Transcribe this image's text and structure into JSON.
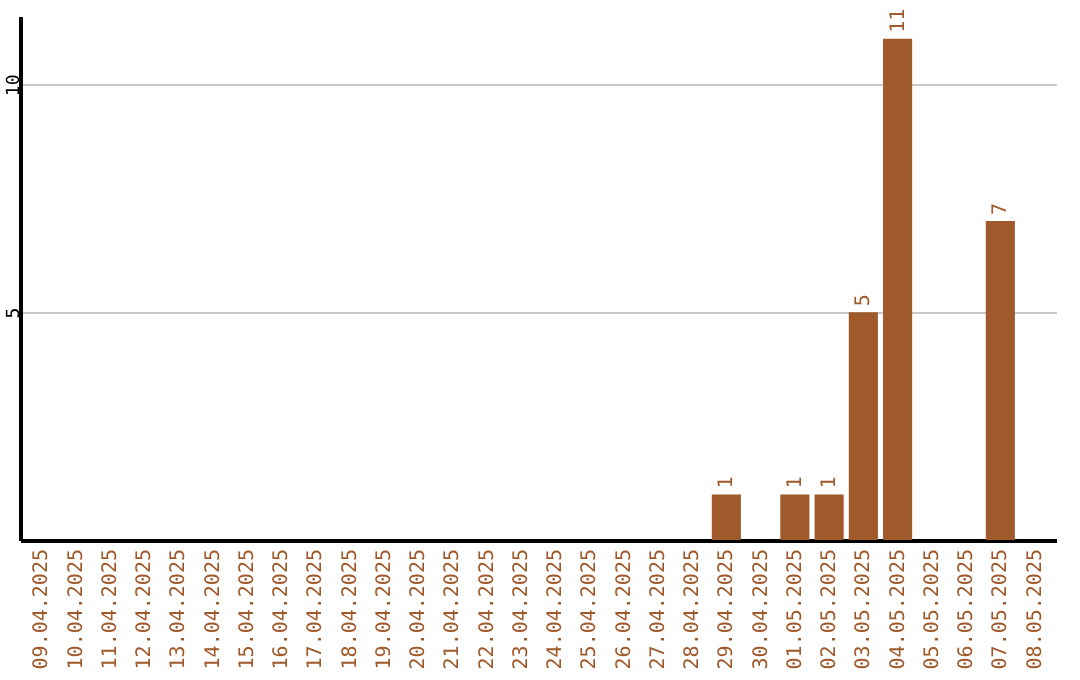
{
  "chart_data": {
    "type": "bar",
    "categories": [
      "09.04.2025",
      "10.04.2025",
      "11.04.2025",
      "12.04.2025",
      "13.04.2025",
      "14.04.2025",
      "15.04.2025",
      "16.04.2025",
      "17.04.2025",
      "18.04.2025",
      "19.04.2025",
      "20.04.2025",
      "21.04.2025",
      "22.04.2025",
      "23.04.2025",
      "24.04.2025",
      "25.04.2025",
      "26.04.2025",
      "27.04.2025",
      "28.04.2025",
      "29.04.2025",
      "30.04.2025",
      "01.05.2025",
      "02.05.2025",
      "03.05.2025",
      "04.05.2025",
      "05.05.2025",
      "06.05.2025",
      "07.05.2025",
      "08.05.2025"
    ],
    "values": [
      null,
      null,
      null,
      null,
      null,
      null,
      null,
      null,
      null,
      null,
      null,
      null,
      null,
      null,
      null,
      null,
      null,
      null,
      null,
      null,
      1,
      null,
      1,
      1,
      5,
      11,
      null,
      null,
      7,
      null
    ],
    "color": "#a0592a",
    "ylim": [
      0,
      11.5
    ],
    "yticks": [
      5,
      10
    ],
    "grid": "y",
    "data_labels": true
  }
}
